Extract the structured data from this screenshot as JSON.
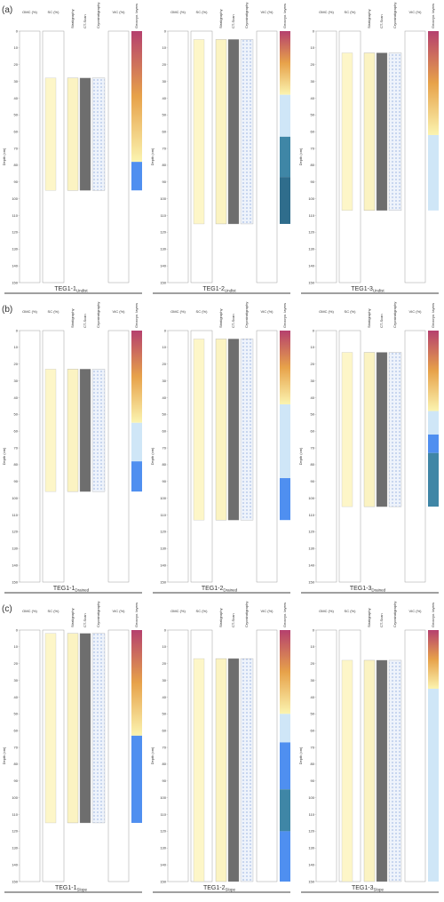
{
  "column_titles": [
    "OMC (%)",
    "SC (%)",
    "Stratigraphy",
    "CT-Scan",
    "Cryostratigraphy",
    "VIC (%)",
    "Geocryo. layers"
  ],
  "depth_label": "Depth (cm)",
  "depth_ticks": [
    0,
    10,
    20,
    30,
    40,
    50,
    60,
    70,
    80,
    90,
    100,
    110,
    120,
    130,
    140,
    150
  ],
  "panels": [
    {
      "label": "(a)",
      "cores": [
        {
          "name": "TEG1-1",
          "subscript": "Undist",
          "top": 28,
          "length": 95,
          "thaw_depth": 78,
          "layers": [
            {
              "bottom": 95,
              "color": "#4f8ff0"
            }
          ]
        },
        {
          "name": "TEG1-2",
          "subscript": "Undist",
          "top": 5,
          "length": 115,
          "thaw_depth": 38,
          "layers": [
            {
              "bottom": 63,
              "color": "#cfe6f7"
            },
            {
              "bottom": 87,
              "color": "#3f86a6"
            },
            {
              "bottom": 115,
              "color": "#2f6d8c"
            }
          ]
        },
        {
          "name": "TEG1-3",
          "subscript": "Undist",
          "top": 13,
          "length": 107,
          "thaw_depth": 62,
          "layers": [
            {
              "bottom": 107,
              "color": "#cfe6f7"
            }
          ]
        }
      ]
    },
    {
      "label": "(b)",
      "cores": [
        {
          "name": "TEG1-1",
          "subscript": "Drained",
          "top": 23,
          "length": 96,
          "thaw_depth": 55,
          "layers": [
            {
              "bottom": 78,
              "color": "#cfe6f7"
            },
            {
              "bottom": 96,
              "color": "#4f8ff0"
            }
          ]
        },
        {
          "name": "TEG1-2",
          "subscript": "Drained",
          "top": 5,
          "length": 113,
          "thaw_depth": 44,
          "layers": [
            {
              "bottom": 88,
              "color": "#cfe6f7"
            },
            {
              "bottom": 113,
              "color": "#4f8ff0"
            }
          ]
        },
        {
          "name": "TEG1-3",
          "subscript": "Drained",
          "top": 13,
          "length": 105,
          "thaw_depth": 48,
          "layers": [
            {
              "bottom": 62,
              "color": "#cfe6f7"
            },
            {
              "bottom": 73,
              "color": "#4f8ff0"
            },
            {
              "bottom": 105,
              "color": "#3f86a6"
            }
          ]
        }
      ]
    },
    {
      "label": "(c)",
      "cores": [
        {
          "name": "TEG1-1",
          "subscript": "Slope",
          "top": 2,
          "length": 115,
          "thaw_depth": 63,
          "layers": [
            {
              "bottom": 115,
              "color": "#4f8ff0"
            }
          ]
        },
        {
          "name": "TEG1-2",
          "subscript": "Slope",
          "top": 17,
          "length": 150,
          "thaw_depth": 50,
          "layers": [
            {
              "bottom": 67,
              "color": "#cfe6f7"
            },
            {
              "bottom": 95,
              "color": "#4f8ff0"
            },
            {
              "bottom": 120,
              "color": "#3f86a6"
            },
            {
              "bottom": 150,
              "color": "#4f8ff0"
            }
          ]
        },
        {
          "name": "TEG1-3",
          "subscript": "Slope",
          "top": 18,
          "length": 150,
          "thaw_depth": 35,
          "layers": [
            {
              "bottom": 150,
              "color": "#cfe6f7"
            }
          ]
        }
      ]
    }
  ]
}
